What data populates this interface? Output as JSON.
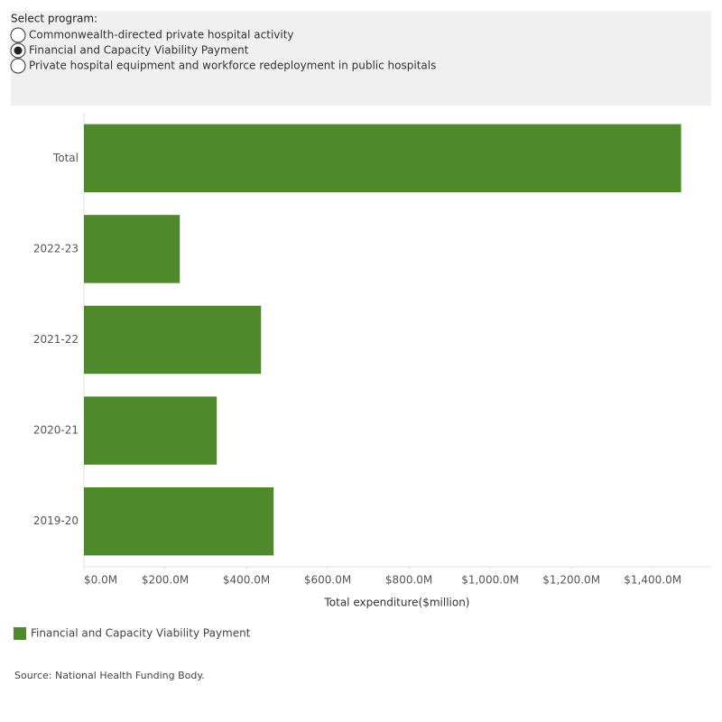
{
  "filter": {
    "label": "Select program:",
    "options": [
      "Commonwealth-directed private hospital activity",
      "Financial and Capacity Viability Payment",
      "Private hospital equipment and workforce redeployment in public hospitals"
    ],
    "selected": 1
  },
  "chart_data": {
    "type": "bar",
    "orientation": "horizontal",
    "categories": [
      "Total",
      "2022-23",
      "2021-22",
      "2020-21",
      "2019-20"
    ],
    "series": [
      {
        "name": "Financial and Capacity Viability Payment",
        "color": "#4e8a2b",
        "values": [
          1470,
          236,
          436,
          327,
          467
        ]
      }
    ],
    "xlabel": "Total expenditure($million)",
    "xlim": [
      0,
      1544
    ],
    "xticks": [
      {
        "value": 0,
        "label": "$0.0M"
      },
      {
        "value": 200,
        "label": "$200.0M"
      },
      {
        "value": 400,
        "label": "$400.0M"
      },
      {
        "value": 600,
        "label": "$600.0M"
      },
      {
        "value": 800,
        "label": "$800.0M"
      },
      {
        "value": 1000,
        "label": "$1,000.0M"
      },
      {
        "value": 1200,
        "label": "$1,200.0M"
      },
      {
        "value": 1400,
        "label": "$1,400.0M"
      }
    ],
    "grid": false,
    "source": "Source: National Health Funding Body."
  }
}
